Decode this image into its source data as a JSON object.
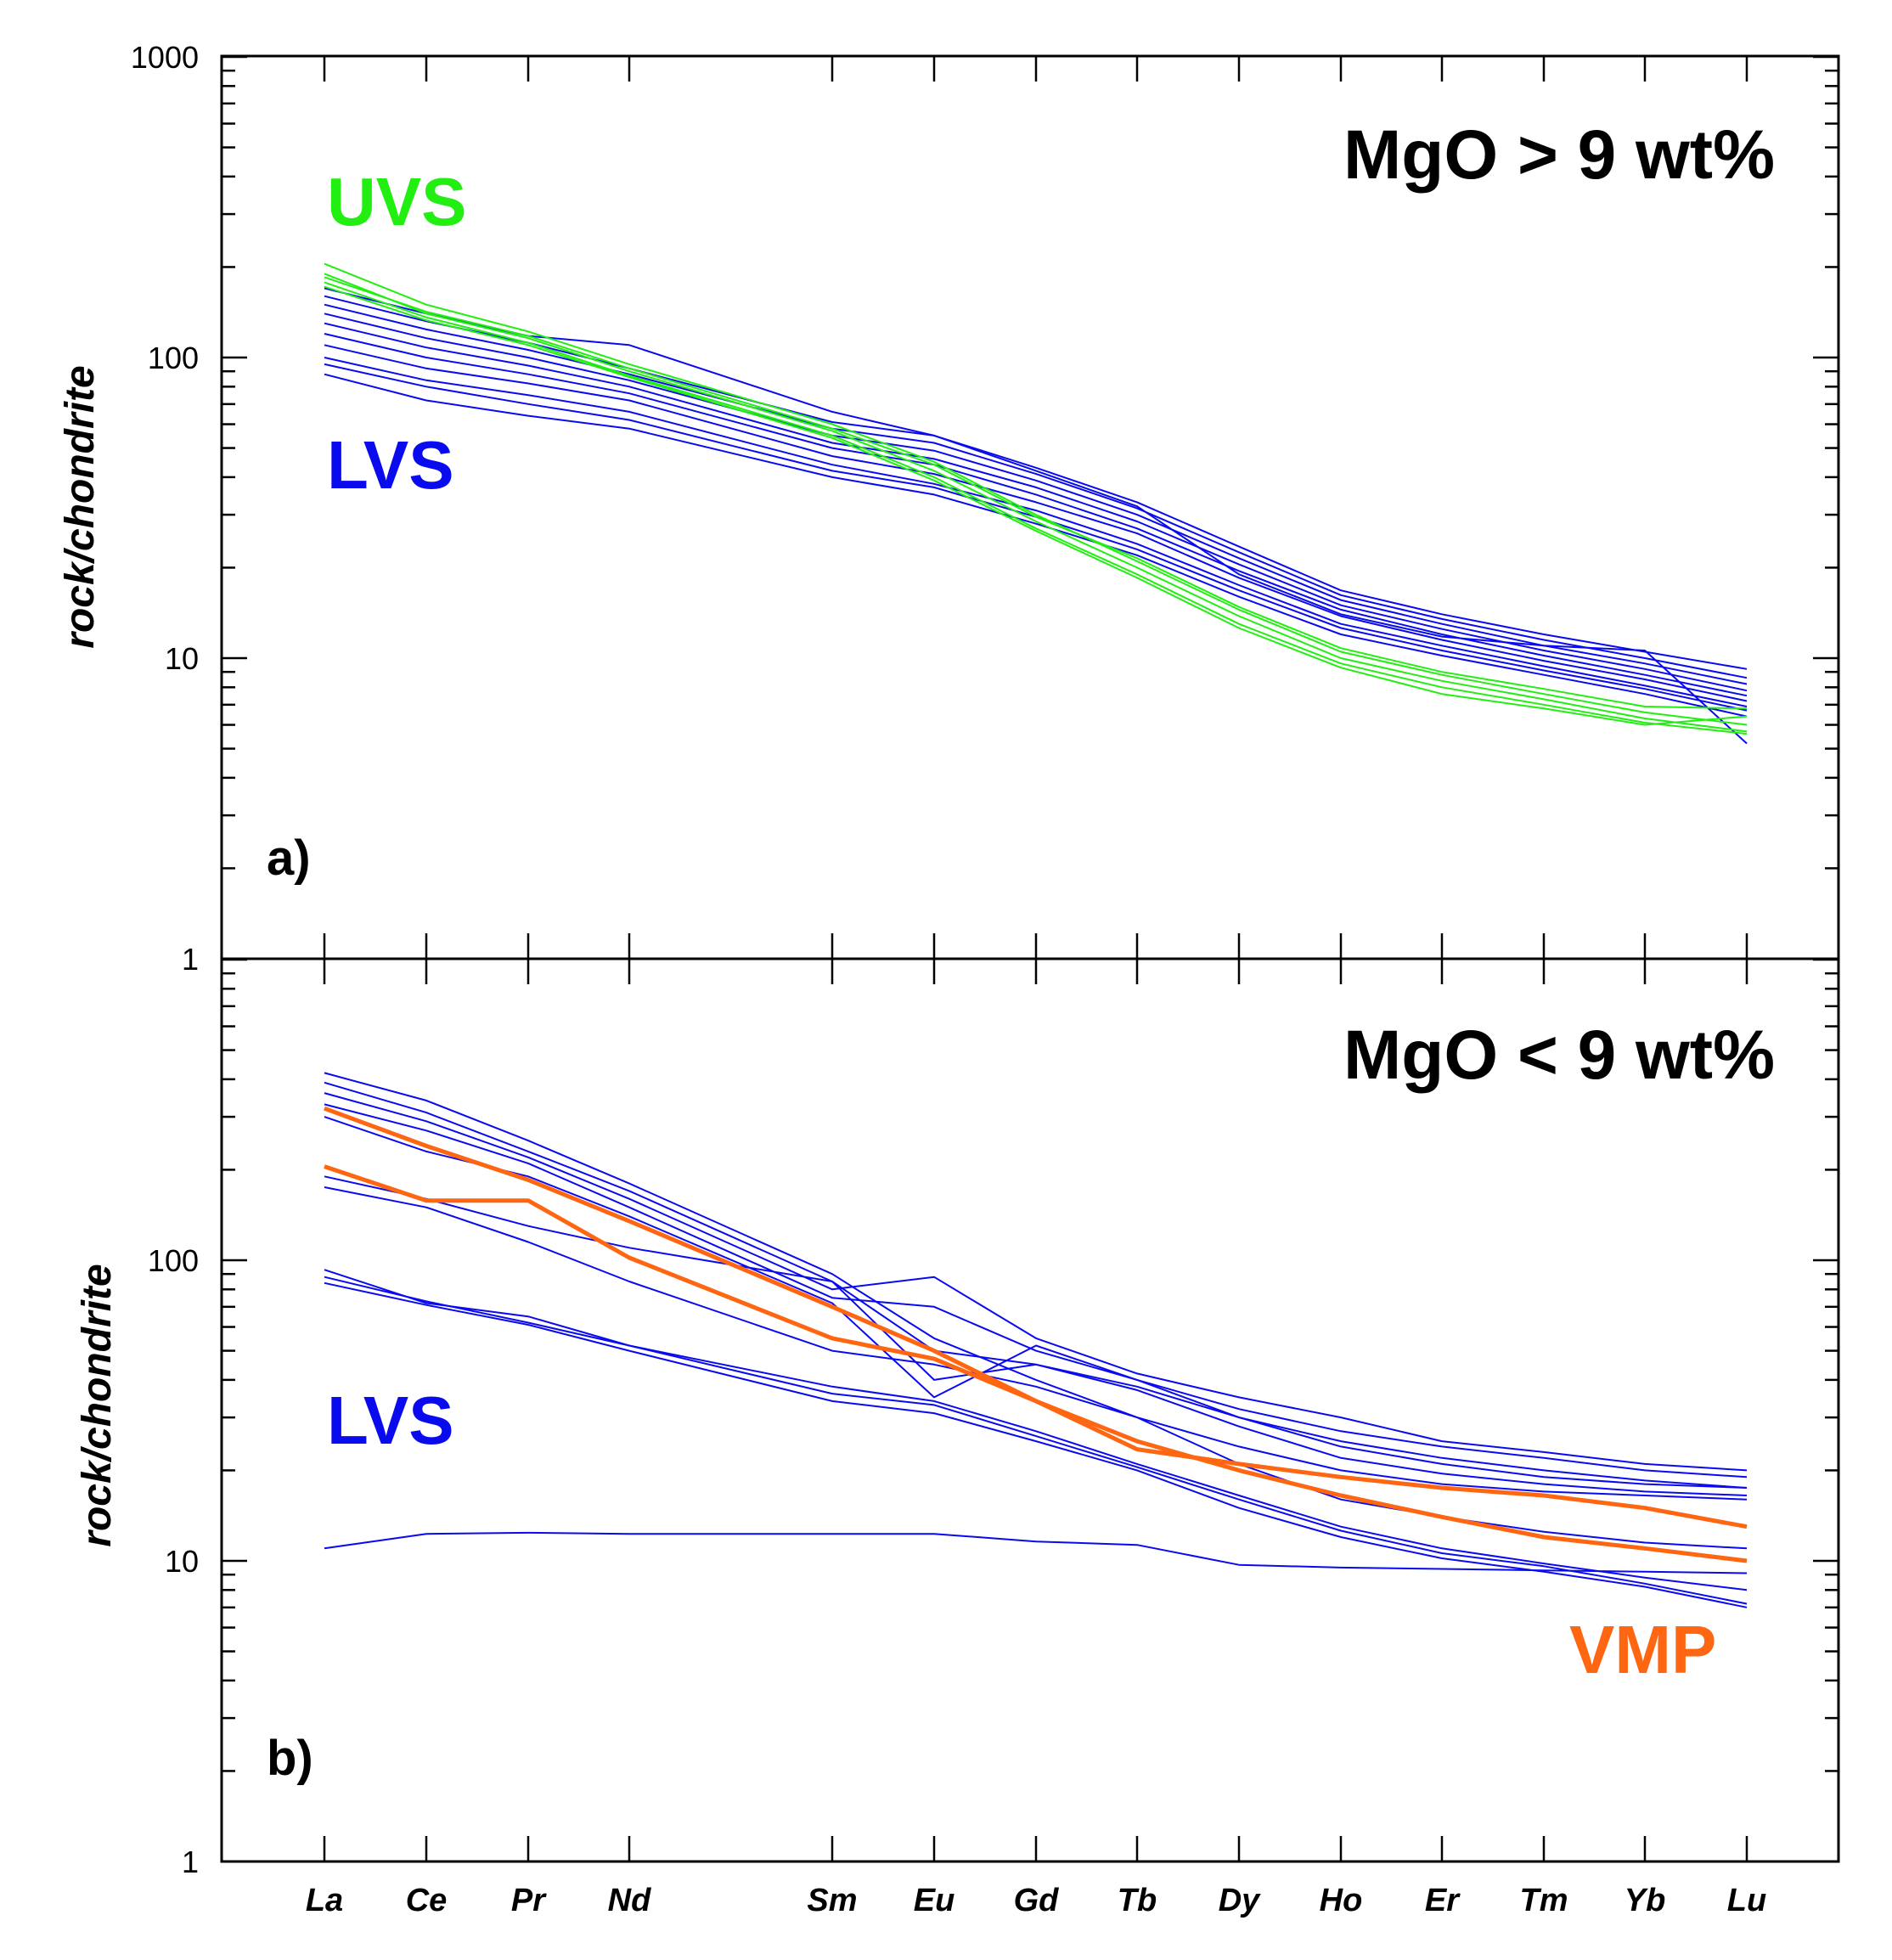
{
  "chart_data": [
    {
      "type": "line",
      "panel": "a)",
      "title": "MgO > 9 wt%",
      "ylabel": "rock/chondrite",
      "yscale": "log",
      "ylim": [
        1,
        1000
      ],
      "yticks": [
        "1",
        "10",
        "100",
        "1000"
      ],
      "categories": [
        "La",
        "Ce",
        "Pr",
        "Nd",
        "Sm",
        "Eu",
        "Gd",
        "Tb",
        "Dy",
        "Ho",
        "Er",
        "Tm",
        "Yb",
        "Lu"
      ],
      "labels": [
        {
          "text": "UVS",
          "color": "#22ee11"
        },
        {
          "text": "LVS",
          "color": "#0a0aee"
        }
      ],
      "series": [
        {
          "name": "LVS",
          "color": "#0a0aee",
          "values": [
            88,
            72,
            64,
            58,
            40,
            35,
            28,
            22,
            16,
            12,
            10.2,
            8.8,
            7.6,
            6.4
          ]
        },
        {
          "name": "LVS",
          "color": "#0a0aee",
          "values": [
            100,
            84,
            75,
            66,
            44,
            38,
            31,
            24,
            17.5,
            13,
            11,
            9.4,
            8.1,
            6.9
          ]
        },
        {
          "name": "LVS",
          "color": "#0a0aee",
          "values": [
            110,
            92,
            82,
            72,
            47,
            41,
            33,
            26,
            18.5,
            13.8,
            11.5,
            9.8,
            8.5,
            7.2
          ]
        },
        {
          "name": "LVS",
          "color": "#0a0aee",
          "values": [
            120,
            100,
            88,
            76,
            50,
            44,
            35,
            27,
            19.5,
            14.5,
            12,
            10.2,
            8.8,
            7.5
          ]
        },
        {
          "name": "LVS",
          "color": "#0a0aee",
          "values": [
            130,
            108,
            94,
            80,
            52,
            46,
            37,
            28.5,
            20.5,
            15,
            12.5,
            10.6,
            9.2,
            7.8
          ]
        },
        {
          "name": "LVS",
          "color": "#0a0aee",
          "values": [
            140,
            116,
            100,
            84,
            55,
            49,
            39,
            30,
            21.5,
            15.6,
            13,
            11,
            9.6,
            8.2
          ]
        },
        {
          "name": "LVS",
          "color": "#0a0aee",
          "values": [
            150,
            124,
            106,
            88,
            58,
            52,
            41,
            31.5,
            22.5,
            16.2,
            13.5,
            11.5,
            10,
            8.6
          ]
        },
        {
          "name": "LVS",
          "color": "#0a0aee",
          "values": [
            160,
            132,
            112,
            92,
            61,
            55,
            43,
            33,
            23.5,
            16.8,
            14,
            12,
            10.5,
            9.2
          ]
        },
        {
          "name": "LVS",
          "color": "#0a0aee",
          "values": [
            170,
            140,
            118,
            110,
            66,
            55,
            42,
            32,
            19,
            14,
            11.8,
            11,
            10.6,
            5.2
          ]
        },
        {
          "name": "LVS",
          "color": "#0a0aee",
          "values": [
            95,
            80,
            70,
            62,
            42,
            37,
            29.5,
            23,
            16.8,
            12.6,
            10.6,
            9.1,
            7.9,
            6.7
          ]
        },
        {
          "name": "UVS",
          "color": "#22ee11",
          "values": [
            205,
            150,
            122,
            95,
            60,
            45,
            30,
            21,
            14.5,
            10.5,
            8.8,
            7.6,
            6.6,
            6.0
          ]
        },
        {
          "name": "UVS",
          "color": "#22ee11",
          "values": [
            190,
            140,
            116,
            90,
            57,
            42,
            28.5,
            20,
            13.8,
            10,
            8.4,
            7.3,
            6.3,
            5.7
          ]
        },
        {
          "name": "UVS",
          "color": "#22ee11",
          "values": [
            178,
            136,
            112,
            87,
            55,
            40,
            27,
            19,
            13,
            9.6,
            8.0,
            7.0,
            6.1,
            5.6
          ]
        },
        {
          "name": "UVS",
          "color": "#22ee11",
          "values": [
            172,
            133,
            110,
            86,
            54,
            39,
            26.5,
            18.5,
            12.6,
            9.3,
            7.6,
            6.8,
            6.0,
            6.4
          ]
        },
        {
          "name": "UVS",
          "color": "#22ee11",
          "values": [
            185,
            142,
            118,
            92,
            58,
            44,
            29.5,
            21.5,
            14.8,
            10.8,
            9.0,
            7.9,
            6.9,
            6.8
          ]
        }
      ]
    },
    {
      "type": "line",
      "panel": "b)",
      "title": "MgO < 9 wt%",
      "ylabel": "rock/chondrite",
      "yscale": "log",
      "ylim": [
        1,
        1000
      ],
      "yticks": [
        "1",
        "10",
        "100"
      ],
      "categories": [
        "La",
        "Ce",
        "Pr",
        "Nd",
        "Sm",
        "Eu",
        "Gd",
        "Tb",
        "Dy",
        "Ho",
        "Er",
        "Tm",
        "Yb",
        "Lu"
      ],
      "labels": [
        {
          "text": "LVS",
          "color": "#0a0aee"
        },
        {
          "text": "VMP",
          "color": "#ff6611"
        }
      ],
      "series": [
        {
          "name": "LVS",
          "color": "#0a0aee",
          "values": [
            420,
            340,
            250,
            180,
            90,
            55,
            40,
            30,
            24,
            20,
            18,
            17,
            16.5,
            16
          ]
        },
        {
          "name": "LVS",
          "color": "#0a0aee",
          "values": [
            390,
            310,
            230,
            170,
            85,
            50,
            45,
            38,
            30,
            25,
            22,
            20,
            18.5,
            17.5
          ]
        },
        {
          "name": "LVS",
          "color": "#0a0aee",
          "values": [
            360,
            290,
            220,
            160,
            80,
            88,
            55,
            42,
            35,
            30,
            25,
            23,
            21,
            20
          ]
        },
        {
          "name": "LVS",
          "color": "#0a0aee",
          "values": [
            330,
            270,
            210,
            150,
            75,
            70,
            50,
            40,
            32,
            27,
            24,
            22,
            20,
            19
          ]
        },
        {
          "name": "LVS",
          "color": "#0a0aee",
          "values": [
            300,
            230,
            190,
            140,
            72,
            35,
            52,
            40,
            30,
            24,
            21,
            19,
            18,
            17.5
          ]
        },
        {
          "name": "LVS",
          "color": "#0a0aee",
          "values": [
            190,
            160,
            130,
            110,
            85,
            40,
            45,
            37,
            28,
            22,
            19.5,
            18,
            17,
            16.5
          ]
        },
        {
          "name": "LVS",
          "color": "#0a0aee",
          "values": [
            175,
            150,
            115,
            85,
            50,
            45,
            38,
            30,
            21,
            16,
            14,
            12.5,
            11.5,
            11
          ]
        },
        {
          "name": "LVS",
          "color": "#0a0aee",
          "values": [
            93,
            72,
            65,
            52,
            38,
            34,
            27,
            21,
            16.5,
            13,
            11,
            9.8,
            8.8,
            8
          ]
        },
        {
          "name": "LVS",
          "color": "#0a0aee",
          "values": [
            88,
            73,
            62,
            52,
            36,
            33,
            26,
            20.5,
            16,
            12.6,
            10.6,
            9.6,
            8.4,
            7.2
          ]
        },
        {
          "name": "LVS",
          "color": "#0a0aee",
          "values": [
            84,
            71,
            61,
            50,
            34,
            31,
            25,
            20,
            15,
            12,
            10.2,
            9.2,
            8.2,
            7.0
          ]
        },
        {
          "name": "LVS",
          "color": "#0a0aee",
          "values": [
            11,
            12.3,
            12.4,
            12.3,
            12.3,
            12.3,
            11.6,
            11.3,
            9.7,
            9.5,
            9.4,
            9.3,
            9.2,
            9.1
          ]
        },
        {
          "name": "VMP",
          "color": "#ff6611",
          "values": [
            320,
            240,
            185,
            135,
            70,
            50,
            34,
            25,
            20,
            16.5,
            14,
            12,
            11,
            10
          ]
        },
        {
          "name": "VMP",
          "color": "#ff6611",
          "values": [
            205,
            158,
            158,
            102,
            55,
            47,
            34,
            23.5,
            21,
            19,
            17.5,
            16.5,
            15,
            13
          ]
        }
      ]
    }
  ],
  "panels": [
    {
      "title": "MgO > 9 wt%",
      "ylabel": "rock/chondrite",
      "letter": "a)",
      "label_1": "UVS",
      "label_2": "LVS",
      "tick_1": "1",
      "tick_10": "10",
      "tick_100": "100",
      "tick_1000": "1000"
    },
    {
      "title": "MgO < 9 wt%",
      "ylabel": "rock/chondrite",
      "letter": "b)",
      "label_1": "LVS",
      "label_2": "VMP",
      "tick_1": "1",
      "tick_10": "10",
      "tick_100": "100"
    }
  ],
  "x_labels": [
    "La",
    "Ce",
    "Pr",
    "Nd",
    "Sm",
    "Eu",
    "Gd",
    "Tb",
    "Dy",
    "Ho",
    "Er",
    "Tm",
    "Yb",
    "Lu"
  ],
  "colors": {
    "lvs": "#0a0aee",
    "uvs": "#22ee11",
    "vmp": "#ff6611",
    "axis": "#000000"
  }
}
